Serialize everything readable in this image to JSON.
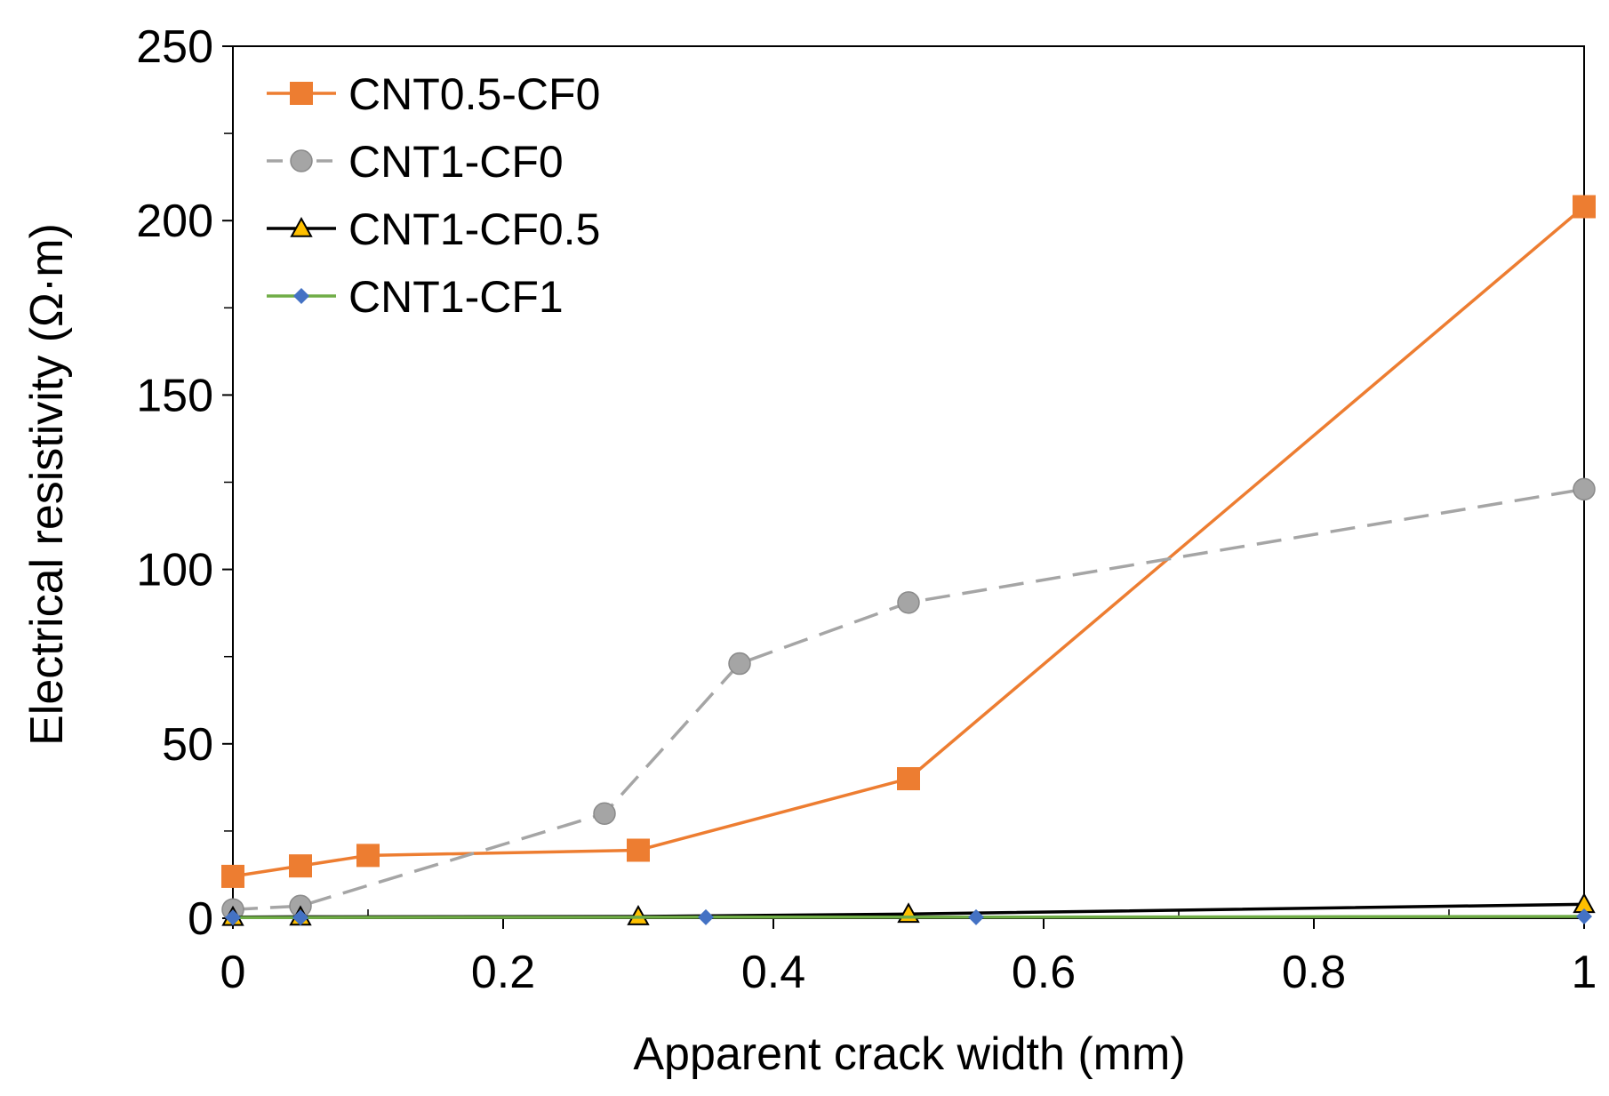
{
  "chart_data": {
    "type": "line",
    "title": "",
    "xlabel": "Apparent crack width (mm)",
    "ylabel": "Electrical resistivity (Ω·m)",
    "xlim": [
      0,
      1
    ],
    "ylim": [
      0,
      250
    ],
    "x_ticks": [
      0,
      0.2,
      0.4,
      0.6,
      0.8,
      1
    ],
    "x_tick_labels": [
      "0",
      "0.2",
      "0.4",
      "0.6",
      "0.8",
      "1"
    ],
    "y_ticks": [
      0,
      50,
      100,
      150,
      200,
      250
    ],
    "y_tick_labels": [
      "0",
      "50",
      "100",
      "150",
      "200",
      "250"
    ],
    "y_minor_ticks": [
      25,
      75,
      125,
      175,
      225
    ],
    "x_minor_ticks": [
      0.1,
      0.3,
      0.5,
      0.7,
      0.9
    ],
    "grid": false,
    "legend_position": "top-left",
    "series": [
      {
        "name": "CNT0.5-CF0",
        "color": "#ED7D31",
        "marker": "square",
        "dash": "solid",
        "x": [
          0,
          0.05,
          0.1,
          0.3,
          0.5,
          1
        ],
        "y": [
          12,
          15,
          18,
          19.5,
          40,
          204
        ]
      },
      {
        "name": "CNT1-CF0",
        "color": "#A5A5A5",
        "marker": "circle",
        "dash": "dashed",
        "x": [
          0,
          0.05,
          0.275,
          0.375,
          0.5,
          1
        ],
        "y": [
          2.5,
          3.5,
          30,
          73,
          90.5,
          123
        ]
      },
      {
        "name": "CNT1-CF0.5",
        "color": "#000000",
        "marker_color": "#FFC000",
        "marker": "triangle",
        "dash": "solid",
        "x": [
          0,
          0.05,
          0.3,
          0.5,
          1
        ],
        "y": [
          0.3,
          0.4,
          0.5,
          1.2,
          4
        ]
      },
      {
        "name": "CNT1-CF1",
        "color": "#70AD47",
        "marker_color": "#4472C4",
        "marker": "diamond",
        "dash": "solid",
        "x": [
          0,
          0.05,
          0.35,
          0.55,
          1
        ],
        "y": [
          0.2,
          0.2,
          0.3,
          0.3,
          0.5
        ]
      }
    ]
  }
}
